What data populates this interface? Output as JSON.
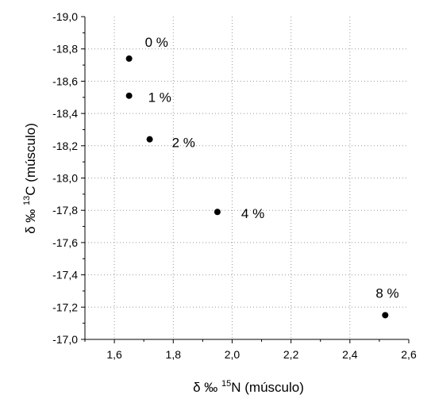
{
  "chart_data": {
    "type": "scatter",
    "xlabel": {
      "prefix": "δ ‰ ",
      "sup": "15",
      "suffix": "N (músculo)"
    },
    "ylabel": {
      "prefix": "δ ‰ ",
      "sup": "13",
      "suffix": "C (músculo)"
    },
    "xlim": [
      1.5,
      2.6
    ],
    "ylim": [
      -17.0,
      -19.0
    ],
    "y_reversed": true,
    "grid": true,
    "x_ticks": [
      1.6,
      1.8,
      2.0,
      2.2,
      2.4,
      2.6
    ],
    "x_tick_labels": [
      "1,6",
      "1,8",
      "2,0",
      "2,2",
      "2,4",
      "2,6"
    ],
    "y_ticks": [
      -19.0,
      -18.8,
      -18.6,
      -18.4,
      -18.2,
      -18.0,
      -17.8,
      -17.6,
      -17.4,
      -17.2,
      -17.0
    ],
    "y_tick_labels": [
      "-19,0",
      "-18,8",
      "-18,6",
      "-18,4",
      "-18,2",
      "-18,0",
      "-17,8",
      "-17,6",
      "-17,4",
      "-17,2",
      "-17,0"
    ],
    "points": [
      {
        "x": 1.65,
        "y": -18.74,
        "label": "0 %"
      },
      {
        "x": 1.65,
        "y": -18.51,
        "label": "1 %"
      },
      {
        "x": 1.72,
        "y": -18.24,
        "label": "2 %"
      },
      {
        "x": 1.95,
        "y": -17.79,
        "label": "4 %"
      },
      {
        "x": 2.52,
        "y": -17.15,
        "label": "8 %"
      }
    ]
  }
}
